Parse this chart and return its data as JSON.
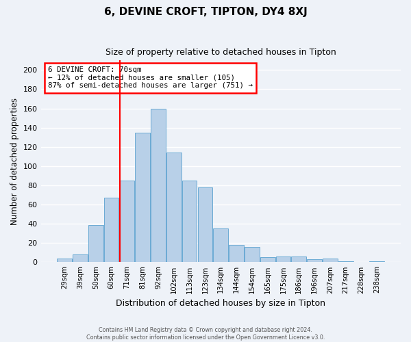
{
  "title": "6, DEVINE CROFT, TIPTON, DY4 8XJ",
  "subtitle": "Size of property relative to detached houses in Tipton",
  "xlabel": "Distribution of detached houses by size in Tipton",
  "ylabel": "Number of detached properties",
  "bar_labels": [
    "29sqm",
    "39sqm",
    "50sqm",
    "60sqm",
    "71sqm",
    "81sqm",
    "92sqm",
    "102sqm",
    "113sqm",
    "123sqm",
    "134sqm",
    "144sqm",
    "154sqm",
    "165sqm",
    "175sqm",
    "186sqm",
    "196sqm",
    "207sqm",
    "217sqm",
    "228sqm",
    "238sqm"
  ],
  "bar_values": [
    4,
    8,
    39,
    67,
    85,
    135,
    160,
    114,
    85,
    78,
    35,
    18,
    16,
    5,
    6,
    6,
    3,
    4,
    1,
    0,
    1
  ],
  "bar_color": "#b8d0e8",
  "bar_edge_color": "#6aaad4",
  "vline_color": "red",
  "vline_index": 4,
  "annotation_title": "6 DEVINE CROFT: 70sqm",
  "annotation_line1": "← 12% of detached houses are smaller (105)",
  "annotation_line2": "87% of semi-detached houses are larger (751) →",
  "annotation_box_color": "white",
  "annotation_box_edge": "red",
  "ylim": [
    0,
    210
  ],
  "yticks": [
    0,
    20,
    40,
    60,
    80,
    100,
    120,
    140,
    160,
    180,
    200
  ],
  "footer1": "Contains HM Land Registry data © Crown copyright and database right 2024.",
  "footer2": "Contains public sector information licensed under the Open Government Licence v3.0.",
  "bg_color": "#eef2f8",
  "grid_color": "white"
}
